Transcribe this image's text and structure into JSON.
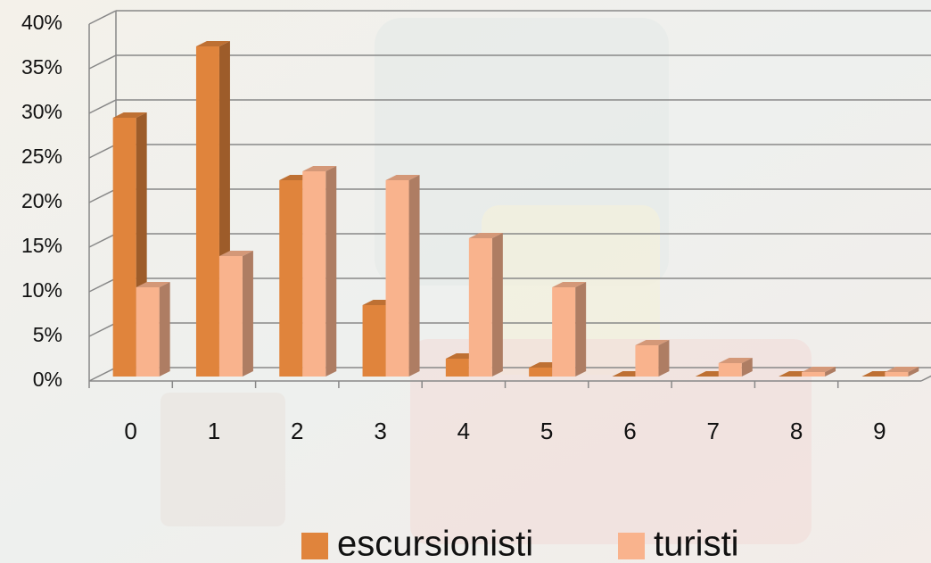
{
  "chart_data": {
    "type": "bar3d",
    "categories": [
      "0",
      "1",
      "2",
      "3",
      "4",
      "5",
      "6",
      "7",
      "8",
      "9"
    ],
    "series": [
      {
        "name": "escursionisti",
        "color": "#e0843c",
        "values": [
          29,
          37,
          22,
          8,
          2,
          1,
          0,
          0,
          0,
          0
        ]
      },
      {
        "name": "turisti",
        "color": "#f9b38d",
        "values": [
          10,
          13.5,
          23,
          22,
          15.5,
          10,
          3.5,
          1.5,
          0.5,
          0.5
        ]
      }
    ],
    "ylim": [
      0,
      40
    ],
    "yticks": [
      {
        "value": 0,
        "label": "0%"
      },
      {
        "value": 5,
        "label": "5%"
      },
      {
        "value": 10,
        "label": "10%"
      },
      {
        "value": 15,
        "label": "15%"
      },
      {
        "value": 20,
        "label": "20%"
      },
      {
        "value": 25,
        "label": "25%"
      },
      {
        "value": 30,
        "label": "30%"
      },
      {
        "value": 35,
        "label": "35%"
      },
      {
        "value": 40,
        "label": "40%"
      }
    ],
    "grid": true
  }
}
